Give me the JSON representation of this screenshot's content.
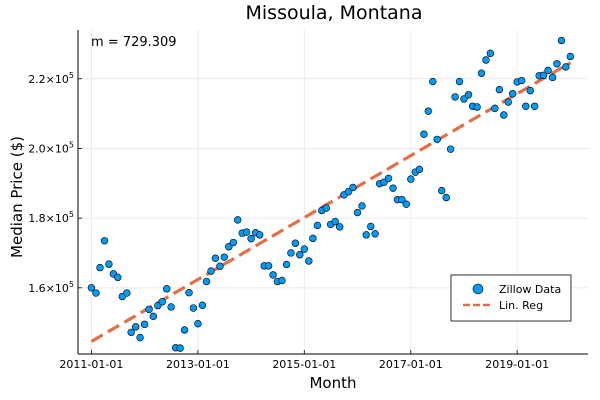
{
  "chart_data": {
    "type": "scatter",
    "title": "Missoula, Montana",
    "xlabel": "Month",
    "ylabel": "Median Price ($)",
    "annotation": "m = 729.309",
    "x_ticks": [
      "2011-01-01",
      "2013-01-01",
      "2015-01-01",
      "2017-01-01",
      "2019-01-01"
    ],
    "y_ticks": [
      {
        "value": 160000,
        "base": "1.6×10",
        "exp": "5"
      },
      {
        "value": 180000,
        "base": "1.8×10",
        "exp": "5"
      },
      {
        "value": 200000,
        "base": "2.0×10",
        "exp": "5"
      },
      {
        "value": 220000,
        "base": "2.2×10",
        "exp": "5"
      }
    ],
    "xlim": [
      "2010-10-01",
      "2020-05-01"
    ],
    "ylim": [
      141000,
      234000
    ],
    "grid": true,
    "legend_position": "bottom-right",
    "colors": {
      "scatter": "#009AF9",
      "regression": "#E26F46"
    },
    "series": [
      {
        "name": "Zillow Data",
        "kind": "scatter",
        "points": [
          {
            "x": "2011-01-01",
            "y": 160000
          },
          {
            "x": "2011-02-01",
            "y": 158500
          },
          {
            "x": "2011-03-01",
            "y": 165800
          },
          {
            "x": "2011-04-01",
            "y": 173500
          },
          {
            "x": "2011-05-01",
            "y": 166800
          },
          {
            "x": "2011-06-01",
            "y": 164000
          },
          {
            "x": "2011-07-01",
            "y": 163000
          },
          {
            "x": "2011-08-01",
            "y": 157500
          },
          {
            "x": "2011-09-01",
            "y": 158500
          },
          {
            "x": "2011-10-01",
            "y": 147200
          },
          {
            "x": "2011-11-01",
            "y": 148800
          },
          {
            "x": "2011-12-01",
            "y": 145700
          },
          {
            "x": "2012-01-01",
            "y": 149500
          },
          {
            "x": "2012-02-01",
            "y": 153800
          },
          {
            "x": "2012-03-01",
            "y": 151800
          },
          {
            "x": "2012-04-01",
            "y": 154900
          },
          {
            "x": "2012-05-01",
            "y": 156000
          },
          {
            "x": "2012-06-01",
            "y": 159700
          },
          {
            "x": "2012-07-01",
            "y": 154500
          },
          {
            "x": "2012-08-01",
            "y": 142800
          },
          {
            "x": "2012-09-01",
            "y": 142700
          },
          {
            "x": "2012-10-01",
            "y": 147900
          },
          {
            "x": "2012-11-01",
            "y": 158600
          },
          {
            "x": "2012-12-01",
            "y": 154200
          },
          {
            "x": "2013-01-01",
            "y": 149700
          },
          {
            "x": "2013-02-01",
            "y": 155000
          },
          {
            "x": "2013-03-01",
            "y": 161800
          },
          {
            "x": "2013-04-01",
            "y": 164800
          },
          {
            "x": "2013-05-01",
            "y": 168500
          },
          {
            "x": "2013-06-01",
            "y": 166200
          },
          {
            "x": "2013-07-01",
            "y": 168800
          },
          {
            "x": "2013-08-01",
            "y": 171800
          },
          {
            "x": "2013-09-01",
            "y": 173000
          },
          {
            "x": "2013-10-01",
            "y": 179500
          },
          {
            "x": "2013-11-01",
            "y": 175700
          },
          {
            "x": "2013-12-01",
            "y": 176000
          },
          {
            "x": "2014-01-01",
            "y": 174100
          },
          {
            "x": "2014-02-01",
            "y": 175800
          },
          {
            "x": "2014-03-01",
            "y": 175200
          },
          {
            "x": "2014-04-01",
            "y": 166300
          },
          {
            "x": "2014-05-01",
            "y": 166300
          },
          {
            "x": "2014-06-01",
            "y": 163700
          },
          {
            "x": "2014-07-01",
            "y": 161800
          },
          {
            "x": "2014-08-01",
            "y": 162100
          },
          {
            "x": "2014-09-01",
            "y": 166700
          },
          {
            "x": "2014-10-01",
            "y": 170000
          },
          {
            "x": "2014-11-01",
            "y": 172800
          },
          {
            "x": "2014-12-01",
            "y": 169500
          },
          {
            "x": "2015-01-01",
            "y": 171100
          },
          {
            "x": "2015-02-01",
            "y": 167700
          },
          {
            "x": "2015-03-01",
            "y": 174200
          },
          {
            "x": "2015-04-01",
            "y": 177900
          },
          {
            "x": "2015-05-01",
            "y": 182200
          },
          {
            "x": "2015-06-01",
            "y": 182900
          },
          {
            "x": "2015-07-01",
            "y": 178200
          },
          {
            "x": "2015-08-01",
            "y": 179000
          },
          {
            "x": "2015-09-01",
            "y": 177500
          },
          {
            "x": "2015-10-01",
            "y": 186700
          },
          {
            "x": "2015-11-01",
            "y": 187600
          },
          {
            "x": "2015-12-01",
            "y": 188800
          },
          {
            "x": "2016-01-01",
            "y": 181600
          },
          {
            "x": "2016-02-01",
            "y": 183500
          },
          {
            "x": "2016-03-01",
            "y": 175200
          },
          {
            "x": "2016-04-01",
            "y": 177600
          },
          {
            "x": "2016-05-01",
            "y": 175500
          },
          {
            "x": "2016-06-01",
            "y": 189900
          },
          {
            "x": "2016-07-01",
            "y": 190300
          },
          {
            "x": "2016-08-01",
            "y": 191400
          },
          {
            "x": "2016-09-01",
            "y": 188600
          },
          {
            "x": "2016-10-01",
            "y": 185300
          },
          {
            "x": "2016-11-01",
            "y": 185300
          },
          {
            "x": "2016-12-01",
            "y": 184000
          },
          {
            "x": "2017-01-01",
            "y": 191200
          },
          {
            "x": "2017-02-01",
            "y": 193200
          },
          {
            "x": "2017-03-01",
            "y": 194000
          },
          {
            "x": "2017-04-01",
            "y": 204100
          },
          {
            "x": "2017-05-01",
            "y": 210700
          },
          {
            "x": "2017-06-01",
            "y": 219200
          },
          {
            "x": "2017-07-01",
            "y": 202600
          },
          {
            "x": "2017-08-01",
            "y": 187900
          },
          {
            "x": "2017-09-01",
            "y": 185900
          },
          {
            "x": "2017-10-01",
            "y": 199800
          },
          {
            "x": "2017-11-01",
            "y": 214800
          },
          {
            "x": "2017-12-01",
            "y": 219200
          },
          {
            "x": "2018-01-01",
            "y": 214200
          },
          {
            "x": "2018-02-01",
            "y": 215400
          },
          {
            "x": "2018-03-01",
            "y": 212100
          },
          {
            "x": "2018-04-01",
            "y": 211900
          },
          {
            "x": "2018-05-01",
            "y": 221600
          },
          {
            "x": "2018-06-01",
            "y": 225400
          },
          {
            "x": "2018-07-01",
            "y": 227300
          },
          {
            "x": "2018-08-01",
            "y": 211500
          },
          {
            "x": "2018-09-01",
            "y": 216900
          },
          {
            "x": "2018-10-01",
            "y": 209600
          },
          {
            "x": "2018-11-01",
            "y": 213300
          },
          {
            "x": "2018-12-01",
            "y": 215700
          },
          {
            "x": "2019-01-01",
            "y": 219100
          },
          {
            "x": "2019-02-01",
            "y": 219500
          },
          {
            "x": "2019-03-01",
            "y": 212100
          },
          {
            "x": "2019-04-01",
            "y": 216600
          },
          {
            "x": "2019-05-01",
            "y": 212100
          },
          {
            "x": "2019-06-01",
            "y": 220900
          },
          {
            "x": "2019-07-01",
            "y": 221000
          },
          {
            "x": "2019-08-01",
            "y": 222400
          },
          {
            "x": "2019-09-01",
            "y": 220400
          },
          {
            "x": "2019-10-01",
            "y": 224300
          },
          {
            "x": "2019-11-01",
            "y": 231000
          },
          {
            "x": "2019-12-01",
            "y": 223400
          },
          {
            "x": "2020-01-01",
            "y": 226400
          }
        ]
      },
      {
        "name": "Lin. Reg",
        "kind": "line",
        "style": "dashed",
        "points": [
          {
            "x": "2011-01-01",
            "y": 144600
          },
          {
            "x": "2020-01-01",
            "y": 224600
          }
        ]
      }
    ]
  }
}
